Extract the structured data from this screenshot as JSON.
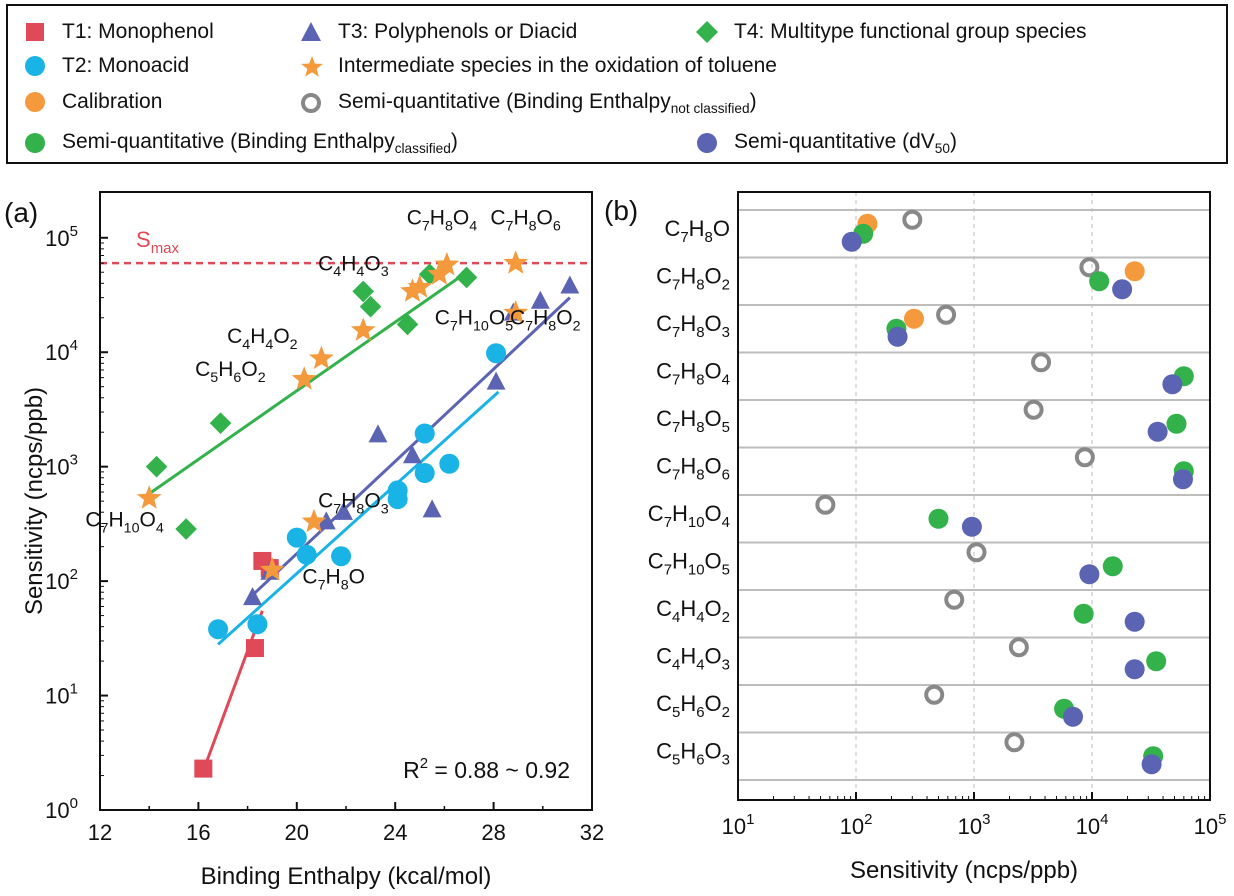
{
  "legend": {
    "items": [
      {
        "id": "t1",
        "label": "T1: Monophenol",
        "marker": "square",
        "color": "#e04a58"
      },
      {
        "id": "t3",
        "label": "T3: Polyphenols or Diacid",
        "marker": "triangle",
        "color": "#5b63b3"
      },
      {
        "id": "t4",
        "label": "T4: Multitype functional group species",
        "marker": "diamond",
        "color": "#33b24c"
      },
      {
        "id": "t2",
        "label": "T2: Monoacid",
        "marker": "circle",
        "color": "#19b3e6"
      },
      {
        "id": "int",
        "label": "Intermediate species in the oxidation of toluene",
        "marker": "star",
        "color": "#f59a3c"
      },
      {
        "id": "cal",
        "label": "Calibration",
        "marker": "circle",
        "color": "#f59a3c"
      },
      {
        "id": "sqn",
        "label_main": "Semi-quantitative (Binding Enthalpy",
        "label_sub": "not classified",
        "label_end": ")",
        "marker": "ring",
        "color": "#888888"
      },
      {
        "id": "sqc",
        "label_main": "Semi-quantitative (Binding Enthalpy",
        "label_sub": "classified",
        "label_end": ")",
        "marker": "circle",
        "color": "#33b24c"
      },
      {
        "id": "sqd",
        "label_main": "Semi-quantitative (dV",
        "label_sub": "50",
        "label_end": ")",
        "marker": "circle",
        "color": "#5b63b3"
      }
    ]
  },
  "colors": {
    "t1": "#e04a58",
    "t2": "#19b3e6",
    "t3": "#5b63b3",
    "t4": "#33b24c",
    "star": "#f59a3c",
    "calibration": "#f59a3c",
    "ring": "#888888",
    "smax": "#e04a58",
    "gridline": "#bdbdbd"
  },
  "chart_data": [
    {
      "panel_label": "(a)",
      "type": "scatter",
      "xlabel": "Binding Enthalpy (kcal/mol)",
      "ylabel": "Sensitivity (ncps/ppb)",
      "xlim": [
        12,
        32
      ],
      "ylim_log10": [
        0,
        5.4
      ],
      "xticks": [
        "12",
        "16",
        "20",
        "24",
        "28",
        "32"
      ],
      "yticks": [
        {
          "base": "10",
          "exp": "0"
        },
        {
          "base": "10",
          "exp": "1"
        },
        {
          "base": "10",
          "exp": "2"
        },
        {
          "base": "10",
          "exp": "3"
        },
        {
          "base": "10",
          "exp": "4"
        },
        {
          "base": "10",
          "exp": "5"
        }
      ],
      "smax": {
        "label_main": "S",
        "label_sub": "max",
        "value": 60000
      },
      "r2_label": {
        "main": "R",
        "sup": "2",
        "rest": " = 0.88 ~ 0.92"
      },
      "series": [
        {
          "name": "T1: Monophenol",
          "marker": "square",
          "points": [
            [
              16.2,
              2.3
            ],
            [
              18.3,
              26
            ],
            [
              18.6,
              150
            ],
            [
              18.9,
              130
            ]
          ]
        },
        {
          "name": "T2: Monoacid",
          "marker": "circle",
          "points": [
            [
              16.8,
              38
            ],
            [
              18.4,
              42
            ],
            [
              20.0,
              240
            ],
            [
              20.4,
              170
            ],
            [
              21.8,
              165
            ],
            [
              24.1,
              520
            ],
            [
              24.1,
              620
            ],
            [
              25.2,
              1950
            ],
            [
              25.2,
              880
            ],
            [
              26.2,
              1060
            ],
            [
              28.1,
              9800
            ]
          ]
        },
        {
          "name": "T3: Polyphenols or Diacid",
          "marker": "triangle",
          "points": [
            [
              18.2,
              72
            ],
            [
              18.9,
              120
            ],
            [
              21.2,
              330
            ],
            [
              21.9,
              400
            ],
            [
              23.3,
              1900
            ],
            [
              24.7,
              1250
            ],
            [
              25.5,
              420
            ],
            [
              28.1,
              5500
            ],
            [
              28.8,
              22000
            ],
            [
              29.9,
              28000
            ],
            [
              31.1,
              38000
            ]
          ]
        },
        {
          "name": "T4: Multitype functional group species",
          "marker": "diamond",
          "points": [
            [
              14.3,
              1000
            ],
            [
              15.5,
              285
            ],
            [
              16.9,
              2400
            ],
            [
              22.7,
              34000
            ],
            [
              23.0,
              25000
            ],
            [
              24.5,
              17500
            ],
            [
              25.4,
              48000
            ],
            [
              26.9,
              45000
            ]
          ]
        },
        {
          "name": "Intermediate species in the oxidation of toluene",
          "marker": "star",
          "points": [
            [
              14.0,
              530
            ],
            [
              19.0,
              125
            ],
            [
              20.7,
              330
            ],
            [
              20.3,
              5800
            ],
            [
              21.0,
              8800
            ],
            [
              22.7,
              15500
            ],
            [
              24.7,
              34000
            ],
            [
              25.0,
              37000
            ],
            [
              25.8,
              48000
            ],
            [
              26.1,
              58000
            ],
            [
              28.9,
              60000
            ],
            [
              28.9,
              22000
            ]
          ]
        }
      ],
      "fits": [
        {
          "series": "T1: Monophenol",
          "from": [
            16.2,
            2.2
          ],
          "to": [
            18.6,
            55
          ]
        },
        {
          "series": "T2: Monoacid",
          "from": [
            16.8,
            28
          ],
          "to": [
            28.2,
            4500
          ]
        },
        {
          "series": "T3: Polyphenols or Diacid",
          "from": [
            18.1,
            72
          ],
          "to": [
            31.1,
            30000
          ]
        },
        {
          "series": "T4: Multitype functional group species",
          "from": [
            14.0,
            580
          ],
          "to": [
            26.6,
            45000
          ]
        }
      ],
      "annotations": [
        {
          "main": "C",
          "parts": [
            [
              "7",
              "H"
            ],
            [
              "8",
              "O"
            ],
            [
              "4",
              ""
            ]
          ],
          "x": 25.9,
          "y": 130000
        },
        {
          "main": "C",
          "parts": [
            [
              "7",
              "H"
            ],
            [
              "8",
              "O"
            ],
            [
              "6",
              ""
            ]
          ],
          "x": 29.3,
          "y": 130000
        },
        {
          "main": "C",
          "parts": [
            [
              "4",
              "H"
            ],
            [
              "4",
              "O"
            ],
            [
              "3",
              ""
            ]
          ],
          "x": 22.3,
          "y": 52000
        },
        {
          "main": "C",
          "parts": [
            [
              "7",
              "H"
            ],
            [
              "10",
              "O"
            ],
            [
              "5",
              ""
            ]
          ],
          "x": 27.2,
          "y": 17500
        },
        {
          "main": "C",
          "parts": [
            [
              "7",
              "H"
            ],
            [
              "8",
              "O"
            ],
            [
              "2",
              ""
            ]
          ],
          "x": 30.1,
          "y": 17500
        },
        {
          "main": "C",
          "parts": [
            [
              "4",
              "H"
            ],
            [
              "4",
              "O"
            ],
            [
              "2",
              ""
            ]
          ],
          "x": 18.6,
          "y": 12000
        },
        {
          "main": "C",
          "parts": [
            [
              "5",
              "H"
            ],
            [
              "6",
              "O"
            ],
            [
              "2",
              ""
            ]
          ],
          "x": 17.3,
          "y": 6200
        },
        {
          "main": "C",
          "parts": [
            [
              "7",
              "H"
            ],
            [
              "10",
              "O"
            ],
            [
              "4",
              ""
            ]
          ],
          "x": 13.0,
          "y": 300
        },
        {
          "main": "C",
          "parts": [
            [
              "7",
              "H"
            ],
            [
              "8",
              "O"
            ],
            [
              "3",
              ""
            ]
          ],
          "x": 22.3,
          "y": 440
        },
        {
          "main": "C",
          "parts": [
            [
              "7",
              "H"
            ],
            [
              "8",
              "O"
            ],
            [
              "",
              ""
            ]
          ],
          "x": 21.5,
          "y": 95
        }
      ]
    },
    {
      "panel_label": "(b)",
      "type": "scatter",
      "xlabel": "Sensitivity (ncps/ppb)",
      "x_scale": "log",
      "xlim_log10": [
        1,
        5
      ],
      "xticks": [
        {
          "base": "10",
          "exp": "1"
        },
        {
          "base": "10",
          "exp": "2"
        },
        {
          "base": "10",
          "exp": "3"
        },
        {
          "base": "10",
          "exp": "4"
        },
        {
          "base": "10",
          "exp": "5"
        }
      ],
      "categories": [
        {
          "main": "C",
          "parts": [
            [
              "7",
              "H"
            ],
            [
              "8",
              "O"
            ],
            [
              "",
              ""
            ]
          ]
        },
        {
          "main": "C",
          "parts": [
            [
              "7",
              "H"
            ],
            [
              "8",
              "O"
            ],
            [
              "2",
              ""
            ]
          ]
        },
        {
          "main": "C",
          "parts": [
            [
              "7",
              "H"
            ],
            [
              "8",
              "O"
            ],
            [
              "3",
              ""
            ]
          ]
        },
        {
          "main": "C",
          "parts": [
            [
              "7",
              "H"
            ],
            [
              "8",
              "O"
            ],
            [
              "4",
              ""
            ]
          ]
        },
        {
          "main": "C",
          "parts": [
            [
              "7",
              "H"
            ],
            [
              "8",
              "O"
            ],
            [
              "5",
              ""
            ]
          ]
        },
        {
          "main": "C",
          "parts": [
            [
              "7",
              "H"
            ],
            [
              "8",
              "O"
            ],
            [
              "6",
              ""
            ]
          ]
        },
        {
          "main": "C",
          "parts": [
            [
              "7",
              "H"
            ],
            [
              "10",
              "O"
            ],
            [
              "4",
              ""
            ]
          ]
        },
        {
          "main": "C",
          "parts": [
            [
              "7",
              "H"
            ],
            [
              "10",
              "O"
            ],
            [
              "5",
              ""
            ]
          ]
        },
        {
          "main": "C",
          "parts": [
            [
              "4",
              "H"
            ],
            [
              "4",
              "O"
            ],
            [
              "2",
              ""
            ]
          ]
        },
        {
          "main": "C",
          "parts": [
            [
              "4",
              "H"
            ],
            [
              "4",
              "O"
            ],
            [
              "3",
              ""
            ]
          ]
        },
        {
          "main": "C",
          "parts": [
            [
              "5",
              "H"
            ],
            [
              "6",
              "O"
            ],
            [
              "2",
              ""
            ]
          ]
        },
        {
          "main": "C",
          "parts": [
            [
              "5",
              "H"
            ],
            [
              "6",
              "O"
            ],
            [
              "3",
              ""
            ]
          ]
        }
      ],
      "series": [
        {
          "name": "Calibration",
          "marker": "circle",
          "values": [
            125,
            23000,
            310,
            null,
            null,
            null,
            null,
            null,
            null,
            null,
            null,
            null
          ]
        },
        {
          "name": "Semi-quantitative (Binding Enthalpy not classified)",
          "marker": "ring",
          "values": [
            300,
            9500,
            580,
            3700,
            3200,
            8700,
            55,
            1050,
            680,
            2400,
            460,
            2200
          ]
        },
        {
          "name": "Semi-quantitative (Binding Enthalpy classified)",
          "marker": "circle",
          "values": [
            115,
            11500,
            220,
            60000,
            52000,
            60000,
            500,
            15000,
            8500,
            35000,
            5800,
            33000
          ]
        },
        {
          "name": "Semi-quantitative (dV50)",
          "marker": "circle",
          "values": [
            92,
            18000,
            225,
            48000,
            36000,
            59000,
            960,
            9500,
            23000,
            23000,
            6900,
            32000
          ]
        }
      ]
    }
  ]
}
